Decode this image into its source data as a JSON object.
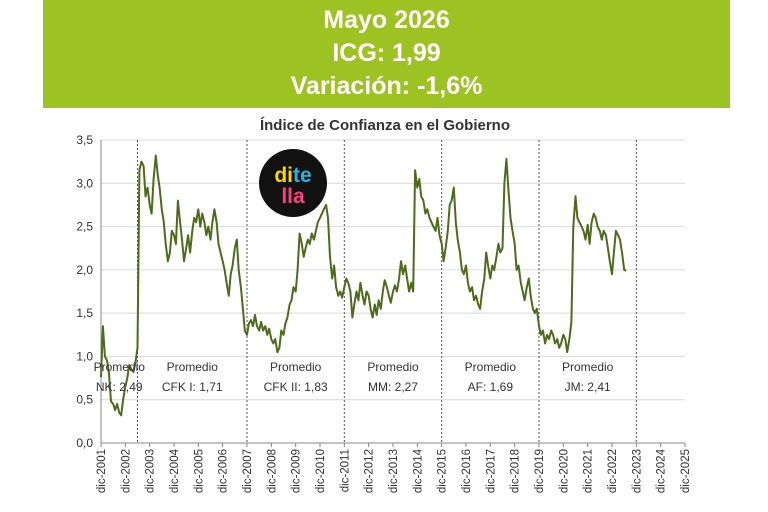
{
  "header": {
    "line1": "Mayo 2026",
    "line2": "ICG: 1,99",
    "line3": "Variación: -1,6%"
  },
  "logo": {
    "parts": [
      "di",
      "te",
      "lla"
    ],
    "colors": [
      "#ffd400",
      "#1fb5ea",
      "#ff3d7f"
    ]
  },
  "colors": {
    "banner": "#9cc322",
    "line": "#4d6b1a",
    "grid": "#d9d9d9",
    "divider": "#555555"
  },
  "chart_data": {
    "type": "line",
    "title": "Índice de Confianza en el Gobierno",
    "xlabel": "",
    "ylabel": "",
    "ylim": [
      0,
      3.5
    ],
    "y_ticks": [
      "0,0",
      "0,5",
      "1,0",
      "1,5",
      "2,0",
      "2,5",
      "3,0",
      "3,5"
    ],
    "x_ticks": [
      "dic-2001",
      "dic-2002",
      "dic-2003",
      "dic-2004",
      "dic-2005",
      "dic-2006",
      "dic-2007",
      "dic-2008",
      "dic-2009",
      "dic-2010",
      "dic-2011",
      "dic-2012",
      "dic-2013",
      "dic-2014",
      "dic-2015",
      "dic-2016",
      "dic-2017",
      "dic-2018",
      "dic-2019",
      "dic-2020",
      "dic-2021",
      "dic-2022",
      "dic-2023",
      "dic-2024",
      "dic-2025"
    ],
    "grid": "horizontal",
    "series": [
      {
        "values": [
          [
            2001.92,
            0.76
          ],
          [
            2002.0,
            1.35
          ],
          [
            2002.08,
            1.0
          ],
          [
            2002.17,
            0.95
          ],
          [
            2002.25,
            0.8
          ],
          [
            2002.33,
            0.48
          ],
          [
            2002.42,
            0.45
          ],
          [
            2002.5,
            0.38
          ],
          [
            2002.58,
            0.45
          ],
          [
            2002.67,
            0.35
          ],
          [
            2002.75,
            0.32
          ],
          [
            2002.83,
            0.5
          ],
          [
            2002.92,
            0.65
          ],
          [
            2003.0,
            0.75
          ],
          [
            2003.08,
            0.9
          ],
          [
            2003.17,
            0.85
          ],
          [
            2003.25,
            0.82
          ],
          [
            2003.33,
            0.92
          ],
          [
            2003.42,
            1.1
          ],
          [
            2003.5,
            3.15
          ],
          [
            2003.58,
            3.25
          ],
          [
            2003.67,
            3.2
          ],
          [
            2003.75,
            2.85
          ],
          [
            2003.83,
            2.95
          ],
          [
            2003.92,
            2.75
          ],
          [
            2004.0,
            2.65
          ],
          [
            2004.08,
            3.05
          ],
          [
            2004.17,
            3.32
          ],
          [
            2004.25,
            3.1
          ],
          [
            2004.33,
            2.95
          ],
          [
            2004.42,
            2.7
          ],
          [
            2004.5,
            2.55
          ],
          [
            2004.58,
            2.3
          ],
          [
            2004.67,
            2.1
          ],
          [
            2004.75,
            2.2
          ],
          [
            2004.83,
            2.45
          ],
          [
            2004.92,
            2.4
          ],
          [
            2005.0,
            2.3
          ],
          [
            2005.08,
            2.8
          ],
          [
            2005.17,
            2.55
          ],
          [
            2005.25,
            2.35
          ],
          [
            2005.33,
            2.1
          ],
          [
            2005.42,
            2.25
          ],
          [
            2005.5,
            2.4
          ],
          [
            2005.58,
            2.2
          ],
          [
            2005.67,
            2.45
          ],
          [
            2005.75,
            2.6
          ],
          [
            2005.83,
            2.55
          ],
          [
            2005.92,
            2.7
          ],
          [
            2006.0,
            2.5
          ],
          [
            2006.08,
            2.65
          ],
          [
            2006.17,
            2.55
          ],
          [
            2006.25,
            2.4
          ],
          [
            2006.33,
            2.5
          ],
          [
            2006.42,
            2.35
          ],
          [
            2006.5,
            2.55
          ],
          [
            2006.58,
            2.7
          ],
          [
            2006.67,
            2.55
          ],
          [
            2006.75,
            2.3
          ],
          [
            2006.83,
            2.2
          ],
          [
            2006.92,
            2.1
          ],
          [
            2007.0,
            2.0
          ],
          [
            2007.08,
            1.85
          ],
          [
            2007.17,
            1.7
          ],
          [
            2007.25,
            1.95
          ],
          [
            2007.33,
            2.05
          ],
          [
            2007.42,
            2.25
          ],
          [
            2007.5,
            2.35
          ],
          [
            2007.58,
            2.0
          ],
          [
            2007.67,
            1.8
          ],
          [
            2007.75,
            1.55
          ],
          [
            2007.83,
            1.3
          ],
          [
            2007.92,
            1.25
          ],
          [
            2008.0,
            1.38
          ],
          [
            2008.08,
            1.42
          ],
          [
            2008.17,
            1.35
          ],
          [
            2008.25,
            1.48
          ],
          [
            2008.33,
            1.35
          ],
          [
            2008.42,
            1.3
          ],
          [
            2008.5,
            1.4
          ],
          [
            2008.58,
            1.3
          ],
          [
            2008.67,
            1.35
          ],
          [
            2008.75,
            1.25
          ],
          [
            2008.83,
            1.32
          ],
          [
            2008.92,
            1.2
          ],
          [
            2009.0,
            1.15
          ],
          [
            2009.08,
            1.2
          ],
          [
            2009.17,
            1.05
          ],
          [
            2009.25,
            1.1
          ],
          [
            2009.33,
            1.3
          ],
          [
            2009.42,
            1.25
          ],
          [
            2009.5,
            1.38
          ],
          [
            2009.58,
            1.45
          ],
          [
            2009.67,
            1.6
          ],
          [
            2009.75,
            1.65
          ],
          [
            2009.83,
            1.8
          ],
          [
            2009.92,
            1.75
          ],
          [
            2010.0,
            2.0
          ],
          [
            2010.08,
            2.42
          ],
          [
            2010.17,
            2.3
          ],
          [
            2010.25,
            2.15
          ],
          [
            2010.33,
            2.25
          ],
          [
            2010.42,
            2.35
          ],
          [
            2010.5,
            2.3
          ],
          [
            2010.58,
            2.42
          ],
          [
            2010.67,
            2.35
          ],
          [
            2010.75,
            2.45
          ],
          [
            2010.83,
            2.55
          ],
          [
            2010.92,
            2.6
          ],
          [
            2011.0,
            2.65
          ],
          [
            2011.08,
            2.7
          ],
          [
            2011.17,
            2.75
          ],
          [
            2011.25,
            2.6
          ],
          [
            2011.33,
            2.15
          ],
          [
            2011.42,
            1.9
          ],
          [
            2011.5,
            2.05
          ],
          [
            2011.58,
            1.8
          ],
          [
            2011.67,
            1.7
          ],
          [
            2011.75,
            1.75
          ],
          [
            2011.83,
            1.68
          ],
          [
            2011.92,
            1.8
          ],
          [
            2012.0,
            1.9
          ],
          [
            2012.08,
            1.85
          ],
          [
            2012.17,
            1.75
          ],
          [
            2012.25,
            1.45
          ],
          [
            2012.33,
            1.6
          ],
          [
            2012.42,
            1.75
          ],
          [
            2012.5,
            1.65
          ],
          [
            2012.58,
            1.85
          ],
          [
            2012.67,
            1.7
          ],
          [
            2012.75,
            1.6
          ],
          [
            2012.83,
            1.75
          ],
          [
            2012.92,
            1.7
          ],
          [
            2013.0,
            1.55
          ],
          [
            2013.08,
            1.45
          ],
          [
            2013.17,
            1.6
          ],
          [
            2013.25,
            1.48
          ],
          [
            2013.33,
            1.65
          ],
          [
            2013.42,
            1.55
          ],
          [
            2013.5,
            1.75
          ],
          [
            2013.58,
            1.88
          ],
          [
            2013.67,
            1.8
          ],
          [
            2013.75,
            1.7
          ],
          [
            2013.83,
            1.62
          ],
          [
            2013.92,
            1.75
          ],
          [
            2014.0,
            1.82
          ],
          [
            2014.08,
            1.75
          ],
          [
            2014.17,
            1.9
          ],
          [
            2014.25,
            2.1
          ],
          [
            2014.33,
            1.95
          ],
          [
            2014.42,
            2.05
          ],
          [
            2014.5,
            1.9
          ],
          [
            2014.58,
            1.75
          ],
          [
            2014.67,
            1.85
          ],
          [
            2014.75,
            1.75
          ],
          [
            2014.83,
            3.15
          ],
          [
            2014.92,
            2.95
          ],
          [
            2015.0,
            3.05
          ],
          [
            2015.08,
            2.85
          ],
          [
            2015.17,
            2.8
          ],
          [
            2015.25,
            2.65
          ],
          [
            2015.33,
            2.7
          ],
          [
            2015.42,
            2.6
          ],
          [
            2015.5,
            2.55
          ],
          [
            2015.58,
            2.5
          ],
          [
            2015.67,
            2.45
          ],
          [
            2015.75,
            2.6
          ],
          [
            2015.83,
            2.4
          ],
          [
            2015.92,
            2.3
          ],
          [
            2016.0,
            2.1
          ],
          [
            2016.08,
            2.25
          ],
          [
            2016.17,
            2.45
          ],
          [
            2016.25,
            2.75
          ],
          [
            2016.33,
            2.8
          ],
          [
            2016.42,
            2.95
          ],
          [
            2016.5,
            2.55
          ],
          [
            2016.58,
            2.35
          ],
          [
            2016.67,
            2.2
          ],
          [
            2016.75,
            2.0
          ],
          [
            2016.83,
            1.95
          ],
          [
            2016.92,
            2.05
          ],
          [
            2017.0,
            1.85
          ],
          [
            2017.08,
            1.75
          ],
          [
            2017.17,
            1.8
          ],
          [
            2017.25,
            1.65
          ],
          [
            2017.33,
            1.7
          ],
          [
            2017.42,
            1.6
          ],
          [
            2017.5,
            1.55
          ],
          [
            2017.58,
            1.75
          ],
          [
            2017.67,
            1.9
          ],
          [
            2017.75,
            2.2
          ],
          [
            2017.83,
            2.05
          ],
          [
            2017.92,
            1.9
          ],
          [
            2018.0,
            2.05
          ],
          [
            2018.08,
            2.0
          ],
          [
            2018.17,
            2.15
          ],
          [
            2018.25,
            2.3
          ],
          [
            2018.33,
            2.2
          ],
          [
            2018.42,
            2.25
          ],
          [
            2018.5,
            3.0
          ],
          [
            2018.58,
            3.28
          ],
          [
            2018.67,
            2.9
          ],
          [
            2018.75,
            2.6
          ],
          [
            2018.83,
            2.45
          ],
          [
            2018.92,
            2.3
          ],
          [
            2019.0,
            2.0
          ],
          [
            2019.08,
            2.05
          ],
          [
            2019.17,
            1.85
          ],
          [
            2019.25,
            1.75
          ],
          [
            2019.33,
            1.65
          ],
          [
            2019.42,
            1.8
          ],
          [
            2019.5,
            1.9
          ],
          [
            2019.58,
            1.7
          ],
          [
            2019.67,
            1.55
          ],
          [
            2019.75,
            1.5
          ],
          [
            2019.83,
            1.55
          ],
          [
            2019.92,
            1.35
          ],
          [
            2020.0,
            1.25
          ],
          [
            2020.08,
            1.3
          ],
          [
            2020.17,
            1.15
          ],
          [
            2020.25,
            1.25
          ],
          [
            2020.33,
            1.2
          ],
          [
            2020.42,
            1.3
          ],
          [
            2020.5,
            1.25
          ],
          [
            2020.58,
            1.15
          ],
          [
            2020.67,
            1.2
          ],
          [
            2020.75,
            1.1
          ],
          [
            2020.83,
            1.15
          ],
          [
            2020.92,
            1.25
          ],
          [
            2021.0,
            1.2
          ],
          [
            2021.08,
            1.05
          ],
          [
            2021.17,
            1.2
          ],
          [
            2021.25,
            1.4
          ],
          [
            2021.33,
            2.5
          ],
          [
            2021.42,
            2.85
          ],
          [
            2021.5,
            2.6
          ],
          [
            2021.58,
            2.55
          ],
          [
            2021.67,
            2.5
          ],
          [
            2021.75,
            2.45
          ],
          [
            2021.83,
            2.35
          ],
          [
            2021.92,
            2.52
          ],
          [
            2022.0,
            2.3
          ],
          [
            2022.08,
            2.55
          ],
          [
            2022.17,
            2.65
          ],
          [
            2022.25,
            2.6
          ],
          [
            2022.33,
            2.5
          ],
          [
            2022.42,
            2.45
          ],
          [
            2022.5,
            2.35
          ],
          [
            2022.58,
            2.45
          ],
          [
            2022.67,
            2.4
          ],
          [
            2022.75,
            2.25
          ],
          [
            2022.83,
            2.1
          ],
          [
            2022.92,
            1.95
          ],
          [
            2023.0,
            2.2
          ],
          [
            2023.08,
            2.45
          ],
          [
            2023.17,
            2.4
          ],
          [
            2023.25,
            2.35
          ],
          [
            2023.33,
            2.2
          ],
          [
            2023.42,
            2.0
          ],
          [
            2023.5,
            1.99
          ]
        ]
      }
    ],
    "annotations": [
      {
        "line1": "Promedio",
        "line2": "NK: 2,49"
      },
      {
        "line1": "Promedio",
        "line2": "CFK I: 1,71"
      },
      {
        "line1": "Promedio",
        "line2": "CFK II: 1,83"
      },
      {
        "line1": "Promedio",
        "line2": "MM: 2,27"
      },
      {
        "line1": "Promedio",
        "line2": "AF: 1,69"
      },
      {
        "line1": "Promedio",
        "line2": "JM: 2,41"
      }
    ],
    "period_breaks": [
      2003.42,
      2007.92,
      2011.92,
      2015.92,
      2019.92,
      2023.92
    ]
  }
}
